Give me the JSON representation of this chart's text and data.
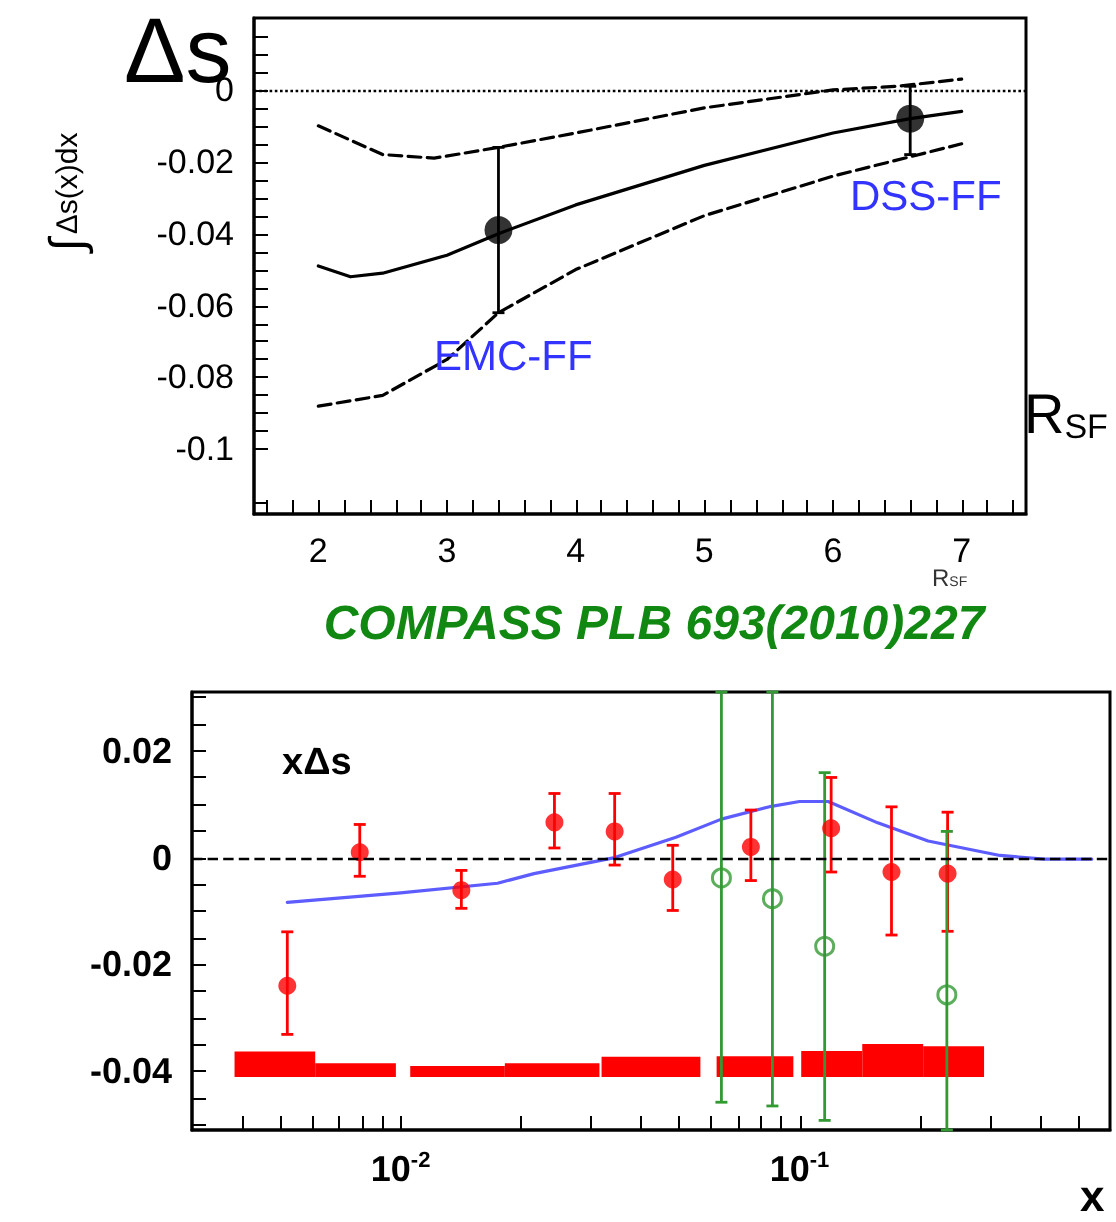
{
  "chart_data": [
    {
      "type": "line",
      "xlabel": "R$_{SF}$",
      "ylabel": "∫$_{Δs(x)dx}$",
      "annotations": [
        "Δs",
        "EMC-FF",
        "DSS-FF",
        "R$_{SF}$"
      ],
      "xlim": [
        1.5,
        7.5
      ],
      "ylim": [
        -0.118,
        0.02
      ],
      "xticks": [
        {
          "value": 1.6,
          "label": null
        },
        {
          "value": 1.8,
          "label": null
        },
        2,
        {
          "value": 2.2,
          "label": null
        },
        {
          "value": 2.4,
          "label": null
        },
        {
          "value": 2.6,
          "label": null
        },
        {
          "value": 2.8,
          "label": null
        },
        3,
        {
          "value": 3.2,
          "label": null
        },
        {
          "value": 3.4,
          "label": null
        },
        {
          "value": 3.6,
          "label": null
        },
        {
          "value": 3.8,
          "label": null
        },
        4,
        {
          "value": 4.2,
          "label": null
        },
        {
          "value": 4.4,
          "label": null
        },
        {
          "value": 4.6,
          "label": null
        },
        {
          "value": 4.8,
          "label": null
        },
        5,
        {
          "value": 5.2,
          "label": null
        },
        {
          "value": 5.4,
          "label": null
        },
        {
          "value": 5.6,
          "label": null
        },
        {
          "value": 5.8,
          "label": null
        },
        6,
        {
          "value": 6.2,
          "label": null
        },
        {
          "value": 6.4,
          "label": null
        },
        {
          "value": 6.6,
          "label": null
        },
        {
          "value": 6.8,
          "label": null
        },
        7,
        {
          "value": 7.2,
          "label": null
        },
        {
          "value": 7.4,
          "label": null
        }
      ],
      "yticks": [
        {
          "value": -0.115,
          "label": null
        },
        -0.1,
        {
          "value": -0.095,
          "label": null
        },
        {
          "value": -0.09,
          "label": null
        },
        {
          "value": -0.085,
          "label": null
        },
        -0.08,
        {
          "value": -0.075,
          "label": null
        },
        {
          "value": -0.07,
          "label": null
        },
        {
          "value": -0.065,
          "label": null
        },
        -0.06,
        {
          "value": -0.055,
          "label": null
        },
        {
          "value": -0.05,
          "label": null
        },
        {
          "value": -0.045,
          "label": null
        },
        -0.04,
        {
          "value": -0.035,
          "label": null
        },
        {
          "value": -0.03,
          "label": null
        },
        {
          "value": -0.025,
          "label": null
        },
        -0.02,
        {
          "value": -0.015,
          "label": null
        },
        {
          "value": -0.01,
          "label": null
        },
        {
          "value": -0.005,
          "label": null
        },
        0,
        {
          "value": 0.005,
          "label": null
        },
        {
          "value": 0.01,
          "label": null
        },
        {
          "value": 0.015,
          "label": null
        }
      ],
      "ref_lines": [
        {
          "axis": "y",
          "value": 0,
          "color": "#000000",
          "line_style": "dotted"
        }
      ],
      "series": [
        {
          "color": "#000000",
          "line_style": "solid",
          "marker": "none",
          "x": [
            2,
            2.25,
            2.5,
            3,
            3.4,
            4,
            5,
            6,
            6.6,
            7
          ],
          "values": [
            -0.049,
            -0.052,
            -0.051,
            -0.046,
            -0.04,
            -0.032,
            -0.021,
            -0.012,
            -0.008,
            -0.006
          ]
        },
        {
          "color": "#000000",
          "line_style": "dashed",
          "marker": "none",
          "x": [
            2,
            2.5,
            2.9,
            3.4,
            4,
            5,
            6,
            6.5,
            7
          ],
          "values": [
            -0.01,
            -0.018,
            -0.019,
            -0.016,
            -0.012,
            -0.005,
            0,
            0.001,
            0.003
          ]
        },
        {
          "color": "#000000",
          "line_style": "dashed",
          "marker": "none",
          "x": [
            2,
            2.5,
            3,
            3.4,
            4,
            5,
            6,
            7
          ],
          "values": [
            -0.088,
            -0.085,
            -0.075,
            -0.062,
            -0.05,
            -0.035,
            -0.024,
            -0.015
          ]
        },
        {
          "type": "scatter",
          "color": "#000000",
          "marker": "circle",
          "x": [
            3.4,
            6.6
          ],
          "values": [
            -0.039,
            -0.008
          ],
          "errors": [
            [
              -0.062,
              -0.016
            ],
            [
              -0.018,
              0.001
            ]
          ]
        }
      ]
    },
    {
      "type": "scatter",
      "title": "COMPASS PLB 693(2010)227",
      "ylabel": "xΔs",
      "xlabel": "x",
      "log": "x",
      "xlim": [
        0.003,
        0.6
      ],
      "ylim": [
        -0.051,
        0.031
      ],
      "xticks": [
        {
          "value": 0.004,
          "label": null
        },
        {
          "value": 0.005,
          "label": null
        },
        {
          "value": 0.006,
          "label": null
        },
        {
          "value": 0.007,
          "label": null
        },
        {
          "value": 0.008,
          "label": null
        },
        {
          "value": 0.009,
          "label": null
        },
        {
          "value": 0.01,
          "label": "10$^{-2}$"
        },
        {
          "value": 0.02,
          "label": null
        },
        {
          "value": 0.03,
          "label": null
        },
        {
          "value": 0.04,
          "label": null
        },
        {
          "value": 0.05,
          "label": null
        },
        {
          "value": 0.06,
          "label": null
        },
        {
          "value": 0.07,
          "label": null
        },
        {
          "value": 0.08,
          "label": null
        },
        {
          "value": 0.09,
          "label": null
        },
        {
          "value": 0.1,
          "label": "10$^{-1}$"
        },
        {
          "value": 0.2,
          "label": null
        },
        {
          "value": 0.3,
          "label": null
        },
        {
          "value": 0.4,
          "label": null
        },
        {
          "value": 0.5,
          "label": null
        }
      ],
      "yticks": [
        {
          "value": -0.05,
          "label": null
        },
        {
          "value": -0.045,
          "label": null
        },
        -0.04,
        {
          "value": -0.035,
          "label": null
        },
        {
          "value": -0.03,
          "label": null
        },
        {
          "value": -0.025,
          "label": null
        },
        -0.02,
        {
          "value": -0.015,
          "label": null
        },
        {
          "value": -0.01,
          "label": null
        },
        {
          "value": -0.005,
          "label": null
        },
        0,
        {
          "value": 0.005,
          "label": null
        },
        {
          "value": 0.01,
          "label": null
        },
        {
          "value": 0.015,
          "label": null
        },
        0.02,
        {
          "value": 0.025,
          "label": null
        },
        {
          "value": 0.03,
          "label": null
        }
      ],
      "ref_lines": [
        {
          "axis": "y",
          "value": 0,
          "color": "#000000",
          "line_style": "dashed"
        }
      ],
      "series": [
        {
          "type": "bar",
          "color": "#ff0000",
          "x": [
            0.00484,
            0.00771,
            0.01389,
            0.02398,
            0.04242,
            0.07732,
            0.1204,
            0.1712,
            0.2433
          ],
          "values": [
            0.0048,
            0.0026,
            0.0021,
            0.0026,
            0.0038,
            0.0039,
            0.0049,
            0.0062,
            0.0058
          ],
          "base": [
            -0.0411,
            -0.0411,
            -0.0411,
            -0.0411,
            -0.0411,
            -0.0411,
            -0.0411,
            -0.0411,
            -0.0411
          ]
        },
        {
          "type": "line",
          "color": "#5c5cff",
          "line_style": "solid",
          "marker": "none",
          "x": [
            0.0052,
            0.01,
            0.0175,
            0.0216,
            0.0344,
            0.049,
            0.0637,
            0.085,
            0.1,
            0.118,
            0.157,
            0.21,
            0.318,
            0.41,
            0.54
          ],
          "values": [
            -0.0084,
            -0.0066,
            -0.0048,
            -0.003,
            0,
            0.0038,
            0.0072,
            0.0096,
            0.0105,
            0.0105,
            0.0065,
            0.0031,
            0.0004,
            -0.0003,
            -0.0003
          ]
        },
        {
          "color": "#ff0000",
          "marker": "circle",
          "x": [
            0.0052,
            0.0079,
            0.0142,
            0.0243,
            0.0344,
            0.0481,
            0.0755,
            0.12,
            0.17,
            0.235
          ],
          "values": [
            -0.024,
            0.001,
            -0.0061,
            0.0066,
            0.0049,
            -0.0041,
            0.002,
            0.0055,
            -0.0027,
            -0.003
          ],
          "errors": [
            [
              -0.0331,
              -0.0139
            ],
            [
              -0.0035,
              0.0062
            ],
            [
              -0.0095,
              -0.0024
            ],
            [
              0.0018,
              0.012
            ],
            [
              -0.0014,
              0.012
            ],
            [
              -0.0099,
              0.0023
            ],
            [
              -0.0043,
              0.0089
            ],
            [
              -0.0027,
              0.015
            ],
            [
              -0.0145,
              0.0095
            ],
            [
              -0.0138,
              0.0085
            ]
          ]
        },
        {
          "color": "#339933",
          "marker": "circle",
          "x": [
            0.0637,
            0.0855,
            0.1156,
            0.234
          ],
          "values": [
            -0.0038,
            -0.0077,
            -0.0166,
            -0.0257
          ],
          "errors": [
            [
              -0.0458,
              0.031
            ],
            [
              -0.0465,
              0.031
            ],
            [
              -0.0492,
              0.0159
            ],
            [
              -0.051,
              0.0049
            ]
          ]
        }
      ]
    }
  ]
}
